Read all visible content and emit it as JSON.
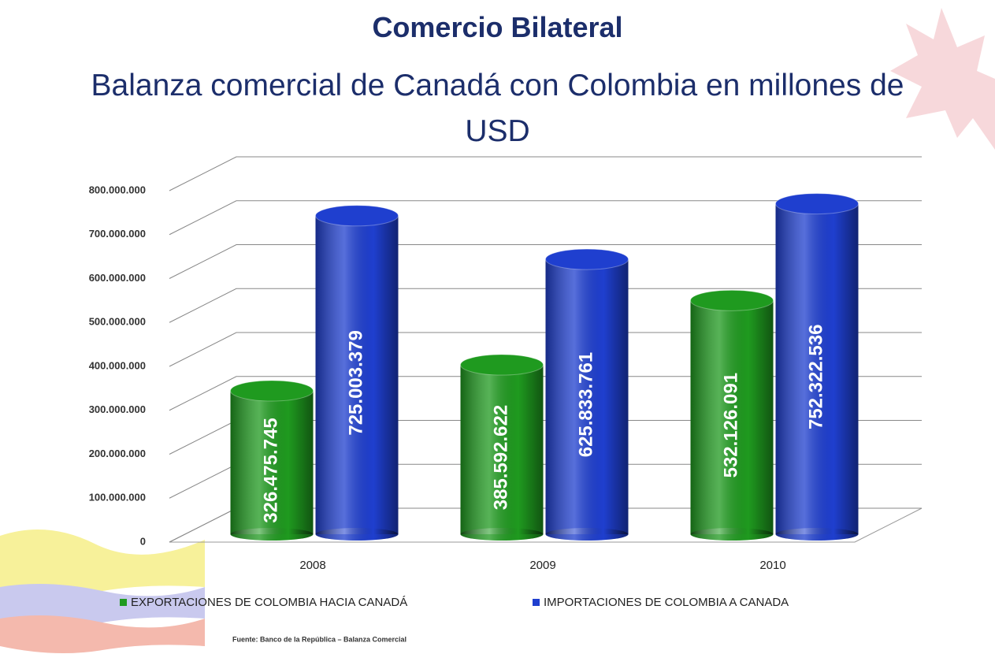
{
  "chart_data": {
    "type": "bar",
    "title": "Comercio Bilateral",
    "subtitle": "Balanza comercial de Canadá con Colombia en millones de USD",
    "categories": [
      "2008",
      "2009",
      "2010"
    ],
    "series": [
      {
        "name": "EXPORTACIONES DE COLOMBIA HACIA CANADÁ",
        "color": "#1f9a1f",
        "values": [
          326475745,
          385592622,
          532126091
        ],
        "value_labels": [
          "326.475.745",
          "385.592.622",
          "532.126.091"
        ]
      },
      {
        "name": "IMPORTACIONES DE COLOMBIA A CANADA",
        "color": "#1f3fcf",
        "values": [
          725003379,
          625833761,
          752322536
        ],
        "value_labels": [
          "725.003.379",
          "625.833.761",
          "752.322.536"
        ]
      }
    ],
    "ylim": [
      0,
      800000000
    ],
    "yticks": [
      0,
      {
        "value": 100000000,
        "label": "100.000.000"
      },
      {
        "value": 200000000,
        "label": "200.000.000"
      },
      {
        "value": 300000000,
        "label": "300.000.000"
      },
      {
        "value": 400000000,
        "label": "400.000.000"
      },
      {
        "value": 500000000,
        "label": "500.000.000"
      },
      {
        "value": 600000000,
        "label": "600.000.000"
      },
      {
        "value": 700000000,
        "label": "700.000.000"
      },
      {
        "value": 800000000,
        "label": "800.000.000"
      }
    ],
    "grid": true,
    "legend": "bottom",
    "source": "Fuente: Banco de la República – Balanza Comercial"
  }
}
